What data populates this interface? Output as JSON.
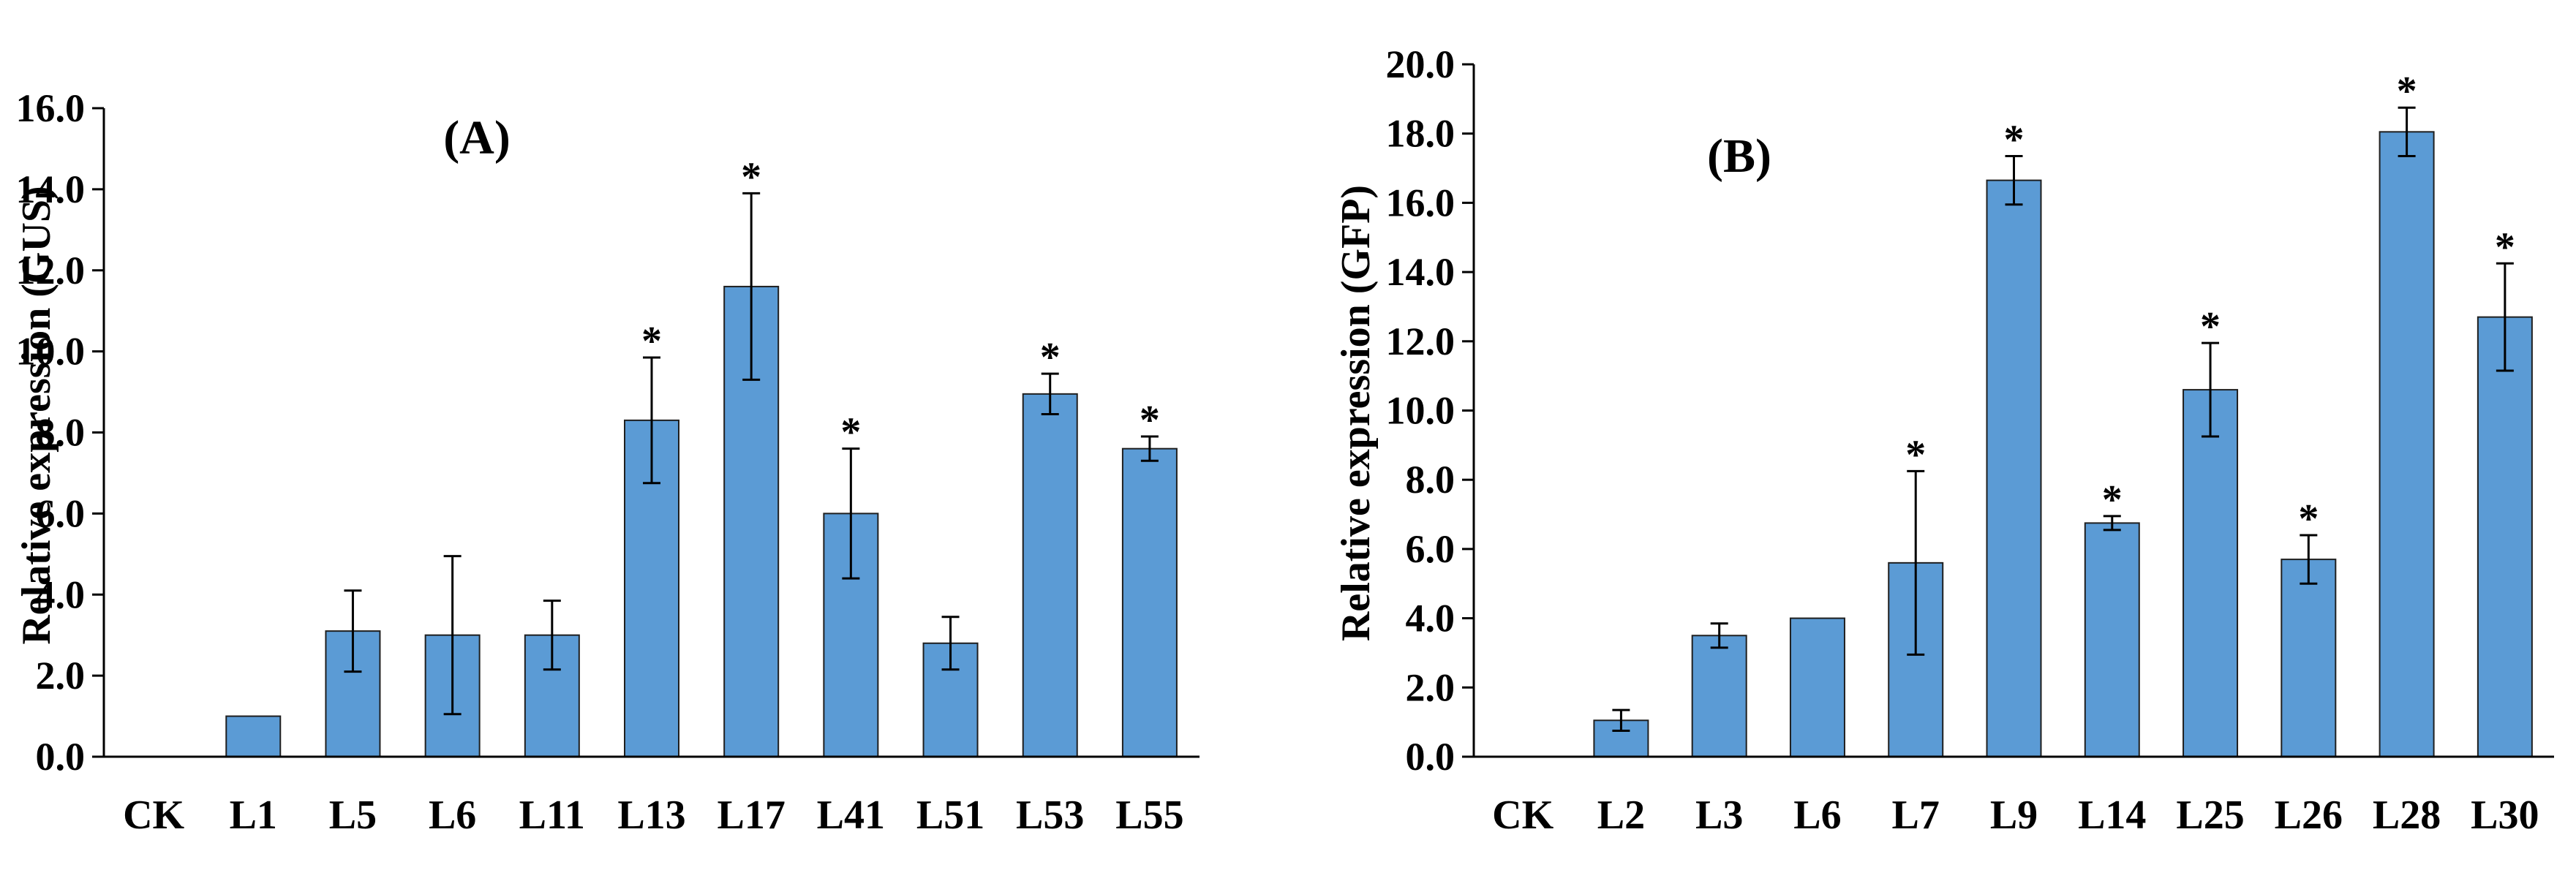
{
  "colors": {
    "bar_fill": "#5b9bd5",
    "bar_stroke": "#1f1f1f",
    "axis": "#000000",
    "text": "#000000"
  },
  "chart_data": [
    {
      "type": "bar",
      "title": "(A)",
      "xlabel": "",
      "ylabel": "Relative expression (GUS)",
      "ylim": [
        0,
        16
      ],
      "y_ticks": [
        "0.0",
        "2.0",
        "4.0",
        "6.0",
        "8.0",
        "10.0",
        "12.0",
        "14.0",
        "16.0"
      ],
      "grid": false,
      "categories": [
        "CK",
        "L1",
        "L5",
        "L6",
        "L11",
        "L13",
        "L17",
        "L41",
        "L51",
        "L53",
        "L55"
      ],
      "values": [
        0,
        1.0,
        3.1,
        3.0,
        3.0,
        8.3,
        11.6,
        6.0,
        2.8,
        8.95,
        7.6
      ],
      "errors": [
        0,
        0,
        1.0,
        1.95,
        0.85,
        1.55,
        2.3,
        1.6,
        0.65,
        0.5,
        0.3
      ],
      "significance": [
        "",
        "",
        "",
        "",
        "",
        "*",
        "*",
        "*",
        "",
        "*",
        "*"
      ]
    },
    {
      "type": "bar",
      "title": "(B)",
      "xlabel": "",
      "ylabel": "Relative expression (GFP)",
      "ylim": [
        0,
        20
      ],
      "y_ticks": [
        "0.0",
        "2.0",
        "4.0",
        "6.0",
        "8.0",
        "10.0",
        "12.0",
        "14.0",
        "16.0",
        "18.0",
        "20.0"
      ],
      "grid": false,
      "categories": [
        "CK",
        "L2",
        "L3",
        "L6",
        "L7",
        "L9",
        "L14",
        "L25",
        "L26",
        "L28",
        "L30"
      ],
      "values": [
        0,
        1.05,
        3.5,
        4.0,
        5.6,
        16.65,
        6.75,
        10.6,
        5.7,
        18.05,
        12.7
      ],
      "errors": [
        0,
        0.3,
        0.35,
        0,
        2.65,
        0.7,
        0.2,
        1.35,
        0.7,
        0.7,
        1.55
      ],
      "significance": [
        "",
        "",
        "",
        "",
        "*",
        "*",
        "*",
        "*",
        "*",
        "*",
        "*"
      ]
    }
  ]
}
